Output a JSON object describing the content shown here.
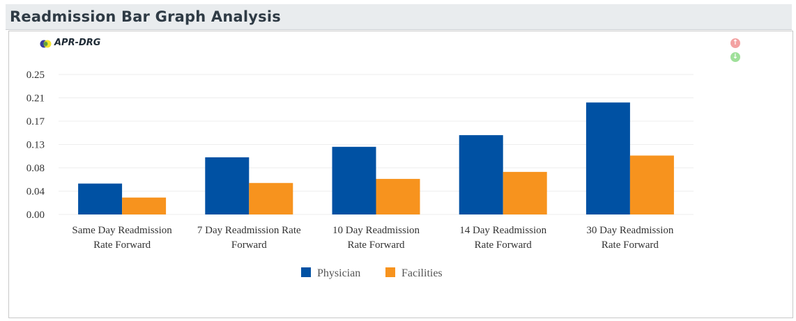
{
  "header": {
    "title": "Readmission Bar Graph Analysis"
  },
  "chart_header": {
    "label": "APR-DRG"
  },
  "controls": {
    "up_icon": "arrow-up-circle-icon",
    "down_icon": "arrow-down-circle-icon"
  },
  "colors": {
    "physician": "#0051a3",
    "facilities": "#f7931e",
    "grid": "#eeeeee"
  },
  "chart_data": {
    "type": "bar",
    "categories": [
      [
        "Same Day Readmission",
        "Rate Forward"
      ],
      [
        "7 Day Readmission Rate",
        "Forward"
      ],
      [
        "10 Day Readmission",
        "Rate Forward"
      ],
      [
        "14 Day Readmission",
        "Rate Forward"
      ],
      [
        "30 Day Readmission",
        "Rate Forward"
      ]
    ],
    "series": [
      {
        "name": "Physician",
        "values": [
          0.053,
          0.098,
          0.116,
          0.136,
          0.192
        ]
      },
      {
        "name": "Facilities",
        "values": [
          0.029,
          0.054,
          0.061,
          0.073,
          0.101
        ]
      }
    ],
    "yticks": [
      "0.00",
      "0.04",
      "0.08",
      "0.13",
      "0.17",
      "0.21",
      "0.25"
    ],
    "ylim": [
      0,
      0.24
    ],
    "grid": true,
    "legend_position": "bottom-center",
    "title": "",
    "xlabel": "",
    "ylabel": ""
  }
}
